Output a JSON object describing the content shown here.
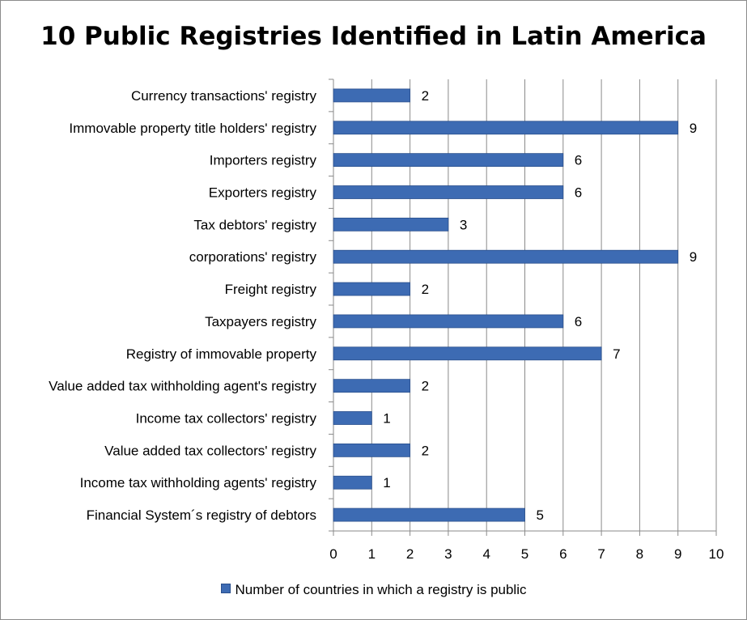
{
  "chart_data": {
    "type": "bar",
    "orientation": "horizontal",
    "title": "10 Public Registries Identified in Latin America",
    "categories": [
      "Currency transactions' registry",
      "Immovable property title holders' registry",
      "Importers registry",
      "Exporters registry",
      "Tax debtors' registry",
      "corporations' registry",
      "Freight registry",
      "Taxpayers registry",
      "Registry of immovable property",
      "Value added tax withholding agent's registry",
      "Income tax collectors' registry",
      "Value added tax collectors' registry",
      "Income tax withholding agents' registry",
      "Financial System´s registry of debtors"
    ],
    "series": [
      {
        "name": "Number of countries in which a registry is public",
        "values": [
          2,
          9,
          6,
          6,
          3,
          9,
          2,
          6,
          7,
          2,
          1,
          2,
          1,
          5
        ]
      }
    ],
    "xlim": [
      0,
      10
    ],
    "xticks": [
      "0",
      "1",
      "2",
      "3",
      "4",
      "5",
      "6",
      "7",
      "8",
      "9",
      "10"
    ],
    "grid": "vertical",
    "legend_position": "bottom",
    "bar_color": "#3d6bb3",
    "data_labels": true
  }
}
